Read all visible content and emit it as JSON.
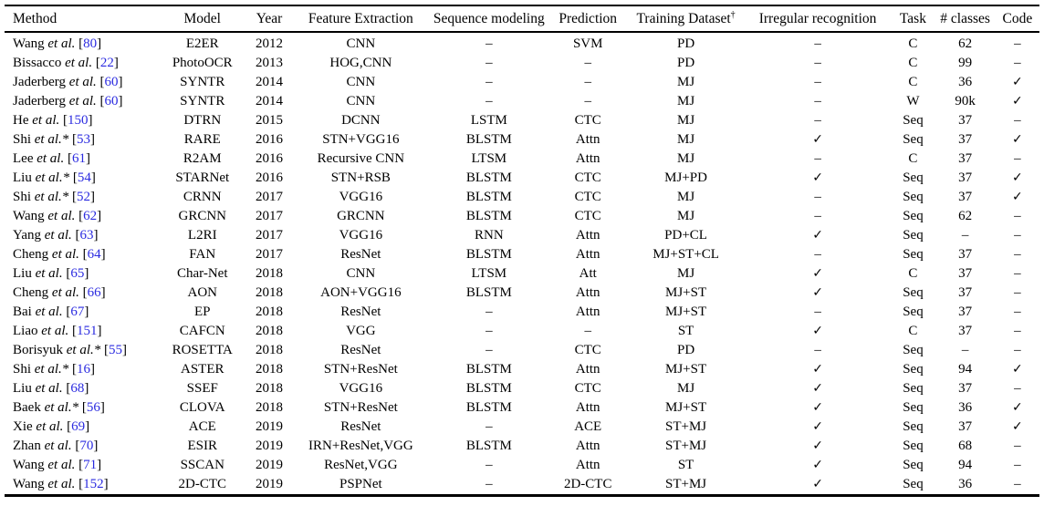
{
  "table": {
    "columns": [
      "Method",
      "Model",
      "Year",
      "Feature Extraction",
      "Sequence modeling",
      "Prediction",
      "Training Dataset",
      "Irregular recognition",
      "Task",
      "# classes",
      "Code"
    ],
    "dagger": "†",
    "etal": "et al.",
    "star_char": "*",
    "cite_open": "[",
    "cite_close": "]",
    "check_char": "✓",
    "dash_char": "–",
    "citation_color": "#2b2be0",
    "text_color": "#000000",
    "rows": [
      {
        "author": "Wang",
        "star": false,
        "cite": "80",
        "model": "E2ER",
        "year": "2012",
        "feature": "CNN",
        "seq": "–",
        "pred": "SVM",
        "dataset": "PD",
        "irregular": "–",
        "task": "C",
        "classes": "62",
        "code": "–"
      },
      {
        "author": "Bissacco",
        "star": false,
        "cite": "22",
        "model": "PhotoOCR",
        "year": "2013",
        "feature": "HOG,CNN",
        "seq": "–",
        "pred": "–",
        "dataset": "PD",
        "irregular": "–",
        "task": "C",
        "classes": "99",
        "code": "–"
      },
      {
        "author": "Jaderberg",
        "star": false,
        "cite": "60",
        "model": "SYNTR",
        "year": "2014",
        "feature": "CNN",
        "seq": "–",
        "pred": "–",
        "dataset": "MJ",
        "irregular": "–",
        "task": "C",
        "classes": "36",
        "code": "✓"
      },
      {
        "author": "Jaderberg",
        "star": false,
        "cite": "60",
        "model": "SYNTR",
        "year": "2014",
        "feature": "CNN",
        "seq": "–",
        "pred": "–",
        "dataset": "MJ",
        "irregular": "–",
        "task": "W",
        "classes": "90k",
        "code": "✓"
      },
      {
        "author": "He",
        "star": false,
        "cite": "150",
        "model": "DTRN",
        "year": "2015",
        "feature": "DCNN",
        "seq": "LSTM",
        "pred": "CTC",
        "dataset": "MJ",
        "irregular": "–",
        "task": "Seq",
        "classes": "37",
        "code": "–"
      },
      {
        "author": "Shi",
        "star": true,
        "cite": "53",
        "model": "RARE",
        "year": "2016",
        "feature": "STN+VGG16",
        "seq": "BLSTM",
        "pred": "Attn",
        "dataset": "MJ",
        "irregular": "✓",
        "task": "Seq",
        "classes": "37",
        "code": "✓"
      },
      {
        "author": "Lee",
        "star": false,
        "cite": "61",
        "model": "R2AM",
        "year": "2016",
        "feature": "Recursive CNN",
        "seq": "LTSM",
        "pred": "Attn",
        "dataset": "MJ",
        "irregular": "–",
        "task": "C",
        "classes": "37",
        "code": "–"
      },
      {
        "author": "Liu",
        "star": true,
        "cite": "54",
        "model": "STARNet",
        "year": "2016",
        "feature": "STN+RSB",
        "seq": "BLSTM",
        "pred": "CTC",
        "dataset": "MJ+PD",
        "irregular": "✓",
        "task": "Seq",
        "classes": "37",
        "code": "✓"
      },
      {
        "author": "Shi",
        "star": true,
        "cite": "52",
        "model": "CRNN",
        "year": "2017",
        "feature": "VGG16",
        "seq": "BLSTM",
        "pred": "CTC",
        "dataset": "MJ",
        "irregular": "–",
        "task": "Seq",
        "classes": "37",
        "code": "✓"
      },
      {
        "author": "Wang",
        "star": false,
        "cite": "62",
        "model": "GRCNN",
        "year": "2017",
        "feature": "GRCNN",
        "seq": "BLSTM",
        "pred": "CTC",
        "dataset": "MJ",
        "irregular": "–",
        "task": "Seq",
        "classes": "62",
        "code": "–"
      },
      {
        "author": "Yang",
        "star": false,
        "cite": "63",
        "model": "L2RI",
        "year": "2017",
        "feature": "VGG16",
        "seq": "RNN",
        "pred": "Attn",
        "dataset": "PD+CL",
        "irregular": "✓",
        "task": "Seq",
        "classes": "–",
        "code": "–"
      },
      {
        "author": "Cheng",
        "star": false,
        "cite": "64",
        "model": "FAN",
        "year": "2017",
        "feature": "ResNet",
        "seq": "BLSTM",
        "pred": "Attn",
        "dataset": "MJ+ST+CL",
        "irregular": "–",
        "task": "Seq",
        "classes": "37",
        "code": "–"
      },
      {
        "author": "Liu",
        "star": false,
        "cite": "65",
        "model": "Char-Net",
        "year": "2018",
        "feature": "CNN",
        "seq": "LTSM",
        "pred": "Att",
        "dataset": "MJ",
        "irregular": "✓",
        "task": "C",
        "classes": "37",
        "code": "–"
      },
      {
        "author": "Cheng",
        "star": false,
        "cite": "66",
        "model": "AON",
        "year": "2018",
        "feature": "AON+VGG16",
        "seq": "BLSTM",
        "pred": "Attn",
        "dataset": "MJ+ST",
        "irregular": "✓",
        "task": "Seq",
        "classes": "37",
        "code": "–"
      },
      {
        "author": "Bai",
        "star": false,
        "cite": "67",
        "model": "EP",
        "year": "2018",
        "feature": "ResNet",
        "seq": "–",
        "pred": "Attn",
        "dataset": "MJ+ST",
        "irregular": "–",
        "task": "Seq",
        "classes": "37",
        "code": "–"
      },
      {
        "author": "Liao",
        "star": false,
        "cite": "151",
        "model": "CAFCN",
        "year": "2018",
        "feature": "VGG",
        "seq": "–",
        "pred": "–",
        "dataset": "ST",
        "irregular": "✓",
        "task": "C",
        "classes": "37",
        "code": "–"
      },
      {
        "author": "Borisyuk",
        "star": true,
        "cite": "55",
        "model": "ROSETTA",
        "year": "2018",
        "feature": "ResNet",
        "seq": "–",
        "pred": "CTC",
        "dataset": "PD",
        "irregular": "–",
        "task": "Seq",
        "classes": "–",
        "code": "–"
      },
      {
        "author": "Shi",
        "star": true,
        "cite": "16",
        "model": "ASTER",
        "year": "2018",
        "feature": "STN+ResNet",
        "seq": "BLSTM",
        "pred": "Attn",
        "dataset": "MJ+ST",
        "irregular": "✓",
        "task": "Seq",
        "classes": "94",
        "code": "✓"
      },
      {
        "author": "Liu",
        "star": false,
        "cite": "68",
        "model": "SSEF",
        "year": "2018",
        "feature": "VGG16",
        "seq": "BLSTM",
        "pred": "CTC",
        "dataset": "MJ",
        "irregular": "✓",
        "task": "Seq",
        "classes": "37",
        "code": "–"
      },
      {
        "author": "Baek",
        "star": true,
        "cite": "56",
        "model": "CLOVA",
        "year": "2018",
        "feature": "STN+ResNet",
        "seq": "BLSTM",
        "pred": "Attn",
        "dataset": "MJ+ST",
        "irregular": "✓",
        "task": "Seq",
        "classes": "36",
        "code": "✓"
      },
      {
        "author": "Xie",
        "star": false,
        "cite": "69",
        "model": "ACE",
        "year": "2019",
        "feature": "ResNet",
        "seq": "–",
        "pred": "ACE",
        "dataset": "ST+MJ",
        "irregular": "✓",
        "task": "Seq",
        "classes": "37",
        "code": "✓"
      },
      {
        "author": "Zhan",
        "star": false,
        "cite": "70",
        "model": "ESIR",
        "year": "2019",
        "feature": "IRN+ResNet,VGG",
        "seq": "BLSTM",
        "pred": "Attn",
        "dataset": "ST+MJ",
        "irregular": "✓",
        "task": "Seq",
        "classes": "68",
        "code": "–"
      },
      {
        "author": "Wang",
        "star": false,
        "cite": "71",
        "model": "SSCAN",
        "year": "2019",
        "feature": "ResNet,VGG",
        "seq": "–",
        "pred": "Attn",
        "dataset": "ST",
        "irregular": "✓",
        "task": "Seq",
        "classes": "94",
        "code": "–"
      },
      {
        "author": "Wang",
        "star": false,
        "cite": "152",
        "model": "2D-CTC",
        "year": "2019",
        "feature": "PSPNet",
        "seq": "–",
        "pred": "2D-CTC",
        "dataset": "ST+MJ",
        "irregular": "✓",
        "task": "Seq",
        "classes": "36",
        "code": "–"
      }
    ]
  }
}
